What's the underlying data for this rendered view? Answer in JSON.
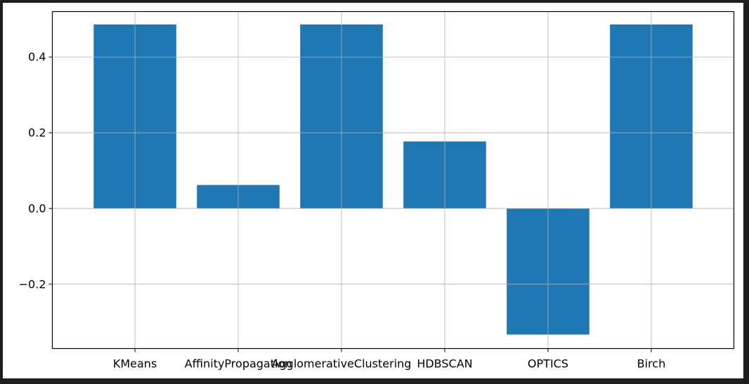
{
  "chart_data": {
    "type": "bar",
    "categories": [
      "KMeans",
      "AffinityPropagation",
      "AgglomerativeClustering",
      "HDBSCAN",
      "OPTICS",
      "Birch"
    ],
    "values": [
      0.486,
      0.062,
      0.486,
      0.177,
      -0.333,
      0.486
    ],
    "ylim": [
      -0.37,
      0.52
    ],
    "yticks": [
      -0.2,
      0.0,
      0.2,
      0.4
    ],
    "ytick_labels": [
      "−0.2",
      "0.0",
      "0.2",
      "0.4"
    ],
    "grid": true,
    "bar_color": "#1f77b4",
    "title": "",
    "xlabel": "",
    "ylabel": ""
  }
}
